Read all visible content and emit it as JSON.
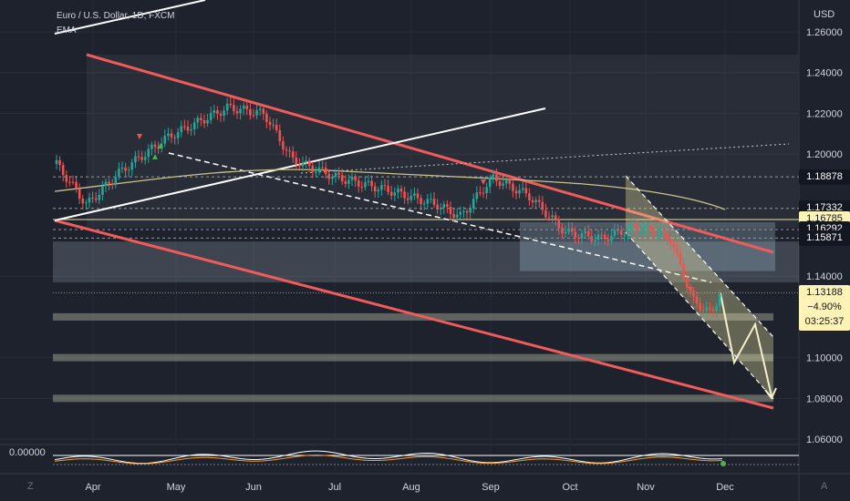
{
  "header": {
    "title": "Euro / U.S. Dollar, 1D, FXCM",
    "indicator": "EMA"
  },
  "axis": {
    "unit": "USD",
    "price_ticks": [
      "1.26000",
      "1.24000",
      "1.22000",
      "1.20000",
      "1.14000",
      "1.10000",
      "1.08000",
      "1.06000"
    ],
    "month_labels": [
      "Apr",
      "May",
      "Jun",
      "Jul",
      "Aug",
      "Sep",
      "Oct",
      "Nov",
      "Dec"
    ]
  },
  "price_tags": [
    {
      "label": "1.18878",
      "value": 1.18878,
      "style": "dark"
    },
    {
      "label": "1.17332",
      "value": 1.17332,
      "style": "dark"
    },
    {
      "label": "1.16785",
      "value": 1.16785,
      "style": "yellow"
    },
    {
      "label": "1.16292",
      "value": 1.16292,
      "style": "dark"
    },
    {
      "label": "1.15871",
      "value": 1.15871,
      "style": "dark"
    }
  ],
  "current_price": {
    "price": "1.13188",
    "change": "−4.90%",
    "countdown": "03:25:37"
  },
  "oscillator": {
    "value": "0.00000"
  },
  "corners": {
    "left": "Z",
    "right": "A"
  },
  "colors": {
    "background": "#1e222d",
    "up": "#26a69a",
    "down": "#ef5350",
    "channel": "#f05b5b",
    "ema": "#c9c38a"
  },
  "chart_data": {
    "type": "candlestick",
    "title": "Euro / U.S. Dollar, 1D, FXCM",
    "ylabel": "USD",
    "ylim": [
      1.05,
      1.27
    ],
    "x_categories": [
      "Apr",
      "May",
      "Jun",
      "Jul",
      "Aug",
      "Sep",
      "Oct",
      "Nov",
      "Dec"
    ],
    "series": [
      {
        "name": "EURUSD",
        "values": [
          {
            "month": "Mar",
            "approx_close": 1.19
          },
          {
            "month": "Apr",
            "approx_close": 1.175
          },
          {
            "month": "May",
            "approx_close": 1.215
          },
          {
            "month": "Jun",
            "approx_close": 1.22
          },
          {
            "month": "Jul",
            "approx_close": 1.185
          },
          {
            "month": "Aug",
            "approx_close": 1.175
          },
          {
            "month": "Sep",
            "approx_close": 1.18
          },
          {
            "month": "Oct",
            "approx_close": 1.16
          },
          {
            "month": "Nov",
            "approx_close": 1.155
          },
          {
            "month": "Dec",
            "approx_close": 1.13188
          }
        ]
      },
      {
        "name": "EMA",
        "approx_level": 1.17
      }
    ],
    "horizontal_levels": [
      1.18878,
      1.17332,
      1.16785,
      1.16292,
      1.15871,
      1.12,
      1.1,
      1.08
    ],
    "last_price": 1.13188,
    "change_percent": -4.9,
    "grid": true
  }
}
